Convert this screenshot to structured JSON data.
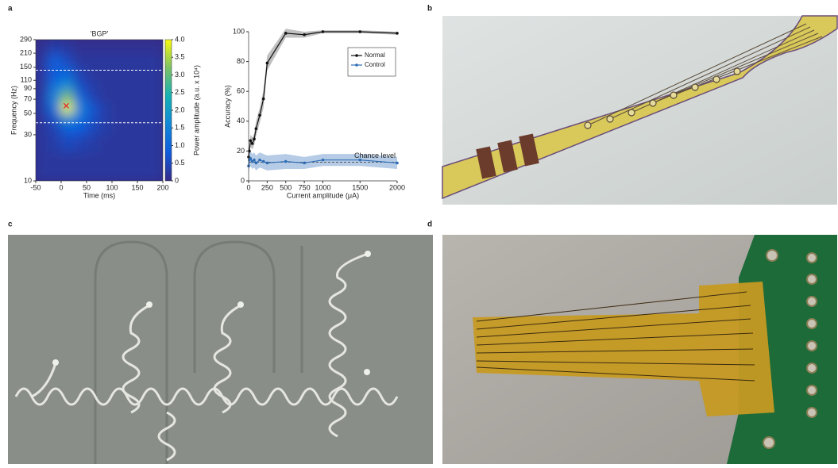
{
  "panels": [
    {
      "label": "a"
    },
    {
      "label": "b"
    },
    {
      "label": "c"
    },
    {
      "label": "d"
    }
  ],
  "chart_data": [
    {
      "type": "heatmap",
      "title": "'BGP'",
      "x_label": "Time (ms)",
      "y_label": "Frequency (Hz)",
      "colorbar_label": "Power amplitude (a.u. x 10⁴)",
      "colormap": "parula",
      "xlim": [
        -50,
        200
      ],
      "xticks": [
        -50,
        0,
        50,
        100,
        150,
        200
      ],
      "ylim": [
        10,
        290
      ],
      "y_log": true,
      "yticks": [
        10,
        30,
        50,
        70,
        90,
        110,
        150,
        210,
        290
      ],
      "clim": [
        0,
        4
      ],
      "cticks": [
        0,
        0.5,
        {
          "value": 1,
          "label": "1.0"
        },
        1.5,
        {
          "value": 2,
          "label": "2.0"
        },
        2.5,
        {
          "value": 3,
          "label": "3.0"
        },
        3.5,
        {
          "value": 4,
          "label": "4.0"
        }
      ],
      "xbins": [
        -50,
        -25,
        0,
        25,
        50,
        75,
        100,
        125,
        150,
        175,
        200
      ],
      "ybins": [
        10,
        20,
        30,
        40,
        50,
        65,
        85,
        110,
        150,
        210,
        290
      ],
      "z": [
        [
          0.2,
          0.2,
          0.2,
          0.2,
          0.2,
          0.2,
          0.2,
          0.2,
          0.2,
          0.2
        ],
        [
          0.2,
          0.3,
          0.5,
          0.4,
          0.3,
          0.2,
          0.2,
          0.2,
          0.2,
          0.2
        ],
        [
          0.2,
          0.4,
          0.9,
          0.8,
          0.5,
          0.3,
          0.2,
          0.2,
          0.2,
          0.2
        ],
        [
          0.2,
          0.6,
          1.8,
          1.2,
          0.6,
          0.3,
          0.2,
          0.2,
          0.2,
          0.2
        ],
        [
          0.3,
          1.2,
          3.9,
          1.5,
          0.7,
          0.3,
          0.2,
          0.2,
          0.2,
          0.2
        ],
        [
          0.3,
          1.5,
          3.2,
          1.0,
          0.4,
          0.2,
          0.2,
          0.2,
          0.2,
          0.2
        ],
        [
          0.2,
          1.2,
          1.8,
          0.6,
          0.3,
          0.2,
          0.2,
          0.2,
          0.2,
          0.2
        ],
        [
          0.2,
          0.8,
          1.0,
          0.4,
          0.2,
          0.2,
          0.2,
          0.2,
          0.2,
          0.2
        ],
        [
          0.2,
          0.9,
          0.5,
          0.2,
          0.2,
          0.2,
          0.2,
          0.2,
          0.2,
          0.2
        ],
        [
          0.1,
          0.3,
          0.2,
          0.1,
          0.1,
          0.1,
          0.1,
          0.1,
          0.1,
          0.1
        ]
      ],
      "hlines": [
        40,
        140
      ],
      "marker": {
        "x": 10,
        "y": 60,
        "color": "#e8262a"
      }
    },
    {
      "type": "line",
      "x_label": "Current amplitude (μA)",
      "y_label": "Accuracy (%)",
      "xlim": [
        0,
        2000
      ],
      "xticks": [
        0,
        250,
        500,
        750,
        1000,
        1500,
        2000
      ],
      "ylim": [
        0,
        100
      ],
      "yticks": [
        0,
        20,
        40,
        60,
        80,
        100
      ],
      "legend": "upper right",
      "x": [
        0,
        10,
        25,
        50,
        75,
        100,
        150,
        200,
        250,
        500,
        750,
        1000,
        1500,
        2000
      ],
      "series": [
        {
          "name": "Normal",
          "color": "#111111",
          "band_color": "#b5b5b5",
          "values": [
            16,
            20,
            27,
            25,
            28,
            35,
            44,
            55,
            79,
            99,
            98,
            100,
            100,
            99
          ],
          "errors": [
            3,
            3,
            4,
            4,
            4,
            5,
            5,
            6,
            5,
            3,
            2,
            1,
            1,
            1
          ]
        },
        {
          "name": "Control",
          "color": "#2f6db5",
          "band_color": "#a9c3e2",
          "values": [
            10,
            14,
            15,
            13,
            14,
            12,
            14,
            13,
            12,
            13,
            12,
            14,
            14,
            12
          ],
          "errors": [
            5,
            5,
            5,
            5,
            5,
            5,
            5,
            5,
            5,
            5,
            4,
            4,
            4,
            4
          ]
        }
      ],
      "chance_level": 12.5,
      "chance_label": "Chance level"
    }
  ]
}
